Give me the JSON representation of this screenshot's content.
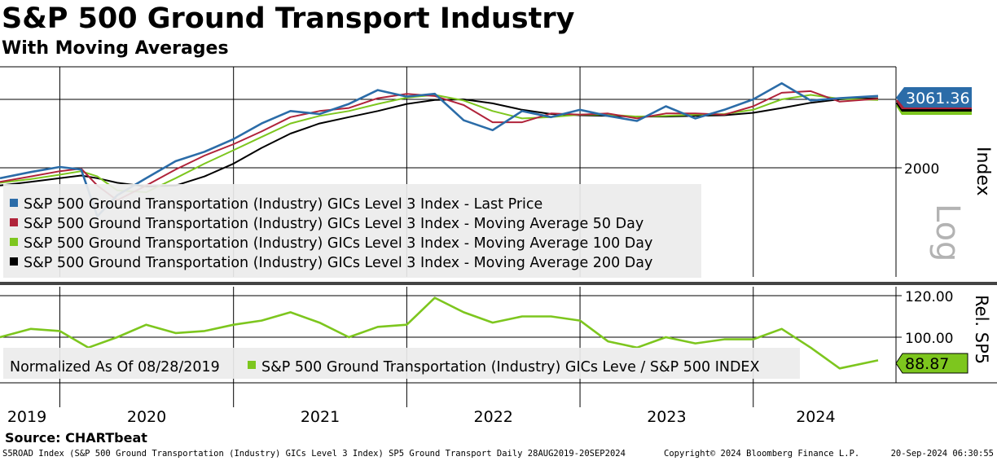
{
  "title": "S&P 500 Ground Transport Industry",
  "subtitle": "With Moving Averages",
  "source": "Source: CHARTbeat",
  "footer": {
    "description": "S5ROAD Index (S&P 500 Ground Transportation (Industry) GICs Level 3 Index) SP5 Ground Transport  Daily 28AUG2019-20SEP2024",
    "copyright": "Copyright© 2024 Bloomberg Finance L.P.",
    "timestamp": "20-Sep-2024 06:30:55"
  },
  "colors": {
    "last_price": "#2b6ca8",
    "ma50": "#b0233a",
    "ma100": "#7dc61e",
    "ma200": "#000000",
    "relative": "#7dc61e"
  },
  "chart_data": [
    {
      "type": "line",
      "panel": "upper",
      "scale": "log",
      "scale_label": "Log",
      "ylabel": "Index",
      "yticks": [
        2000
      ],
      "reference_line": 3000,
      "legend_placement": "bottom-left",
      "last_value_label": "3061.36",
      "x_tick_labels": [
        "2019",
        "2020",
        "2021",
        "2022",
        "2023",
        "2024"
      ],
      "x": [
        "2019-08-28",
        "2019-11-01",
        "2020-01-01",
        "2020-02-15",
        "2020-03-20",
        "2020-05-01",
        "2020-07-01",
        "2020-09-01",
        "2020-11-01",
        "2021-01-01",
        "2021-03-01",
        "2021-05-01",
        "2021-07-01",
        "2021-09-01",
        "2021-11-01",
        "2022-01-01",
        "2022-03-01",
        "2022-05-01",
        "2022-07-01",
        "2022-09-01",
        "2022-11-01",
        "2023-01-01",
        "2023-03-01",
        "2023-05-01",
        "2023-07-01",
        "2023-09-01",
        "2023-11-01",
        "2024-01-01",
        "2024-03-01",
        "2024-05-01",
        "2024-07-01",
        "2024-09-20"
      ],
      "series": [
        {
          "name": "S&P 500 Ground Transportation (Industry) GICs Level 3 Index - Last Price",
          "values": [
            1880,
            1950,
            2010,
            1980,
            1500,
            1700,
            1880,
            2080,
            2200,
            2370,
            2600,
            2800,
            2750,
            2920,
            3170,
            3050,
            3100,
            2650,
            2500,
            2800,
            2700,
            2820,
            2720,
            2640,
            2880,
            2680,
            2820,
            3000,
            3300,
            2980,
            3020,
            3061.36
          ]
        },
        {
          "name": "S&P 500 Ground Transportation (Industry) GICs Level 3 Index - Moving Average 50 Day",
          "values": [
            1840,
            1900,
            1960,
            1990,
            1800,
            1650,
            1800,
            1980,
            2150,
            2300,
            2480,
            2700,
            2800,
            2850,
            3020,
            3100,
            3060,
            2900,
            2620,
            2620,
            2760,
            2740,
            2760,
            2680,
            2760,
            2760,
            2740,
            2880,
            3120,
            3150,
            2960,
            3010
          ]
        },
        {
          "name": "S&P 500 Ground Transportation (Industry) GICs Level 3 Index - Moving Average 100 Day",
          "values": [
            1830,
            1870,
            1920,
            1960,
            1900,
            1750,
            1730,
            1880,
            2050,
            2220,
            2400,
            2600,
            2720,
            2800,
            2920,
            3030,
            3080,
            2980,
            2800,
            2680,
            2700,
            2740,
            2740,
            2710,
            2720,
            2740,
            2750,
            2820,
            3000,
            3080,
            3010,
            2990
          ]
        },
        {
          "name": "S&P 500 Ground Transportation (Industry) GICs Level 3 Index - Moving Average 200 Day",
          "values": [
            1800,
            1840,
            1880,
            1910,
            1880,
            1830,
            1790,
            1800,
            1900,
            2050,
            2250,
            2450,
            2600,
            2700,
            2800,
            2920,
            2990,
            3000,
            2930,
            2820,
            2750,
            2730,
            2720,
            2710,
            2710,
            2720,
            2730,
            2770,
            2850,
            2940,
            3000,
            3020
          ]
        }
      ]
    },
    {
      "type": "line",
      "panel": "lower",
      "ylabel": "Rel. SP5",
      "yticks": [
        100.0,
        120.0
      ],
      "legend_text": "Normalized As Of 08/28/2019",
      "last_value_label": "88.87",
      "x": [
        "2019-08-28",
        "2019-11-01",
        "2020-01-01",
        "2020-03-01",
        "2020-05-01",
        "2020-07-01",
        "2020-09-01",
        "2020-11-01",
        "2021-01-01",
        "2021-03-01",
        "2021-05-01",
        "2021-07-01",
        "2021-09-01",
        "2021-11-01",
        "2022-01-01",
        "2022-03-01",
        "2022-05-01",
        "2022-07-01",
        "2022-09-01",
        "2022-11-01",
        "2023-01-01",
        "2023-03-01",
        "2023-05-01",
        "2023-07-01",
        "2023-09-01",
        "2023-11-01",
        "2024-01-01",
        "2024-03-01",
        "2024-05-01",
        "2024-07-01",
        "2024-09-20"
      ],
      "series": [
        {
          "name": "S&P 500 Ground Transportation (Industry) GICs Leve / S&P 500 INDEX",
          "values": [
            100,
            104,
            103,
            95,
            100,
            106,
            102,
            103,
            106,
            108,
            112,
            107,
            100,
            105,
            106,
            119,
            112,
            107,
            110,
            110,
            108,
            98,
            95,
            100,
            97,
            99,
            99,
            104,
            95,
            85,
            88.87
          ]
        }
      ]
    }
  ]
}
